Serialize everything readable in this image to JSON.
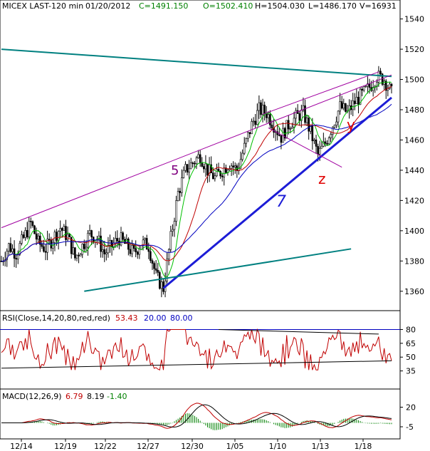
{
  "header": {
    "symbol": "MICEX LAST-120 min",
    "date": "01/20/2012",
    "close": "C=1491.150",
    "open": "O=1502.410",
    "high": "H=1504.030",
    "low": "L=1486.170",
    "volume": "V=16931"
  },
  "waves": [
    {
      "label": "5",
      "color": "#800080"
    },
    {
      "label": "7",
      "color": "#1c1cd6"
    },
    {
      "label": "z",
      "color": "#e00000"
    },
    {
      "label": "y",
      "color": "#e00000"
    }
  ],
  "rsi": {
    "title": "RSI(Close,14,20,80,red,red)",
    "value": "53.43",
    "lower": "20.00",
    "upper": "80.00",
    "lower_color": "#0000c0",
    "upper_color": "#0000c0",
    "value_color": "#c00000"
  },
  "macd": {
    "title": "MACD(12,26,9)",
    "macd": "6.79",
    "signal": "8.19",
    "hist": "-1.40",
    "macd_color": "#c00000",
    "signal_color": "#000000",
    "hist_color": "#008000"
  },
  "chart_data": {
    "type": "candlestick",
    "x_ticks": [
      "12/14",
      "12/19",
      "12/22",
      "12/27",
      "12/30",
      "1/05",
      "1/10",
      "1/13",
      "1/18"
    ],
    "price_axis": {
      "ticks": [
        1360,
        1380,
        1400,
        1420,
        1440,
        1460,
        1480,
        1500,
        1520,
        1540
      ],
      "ylim": [
        1350,
        1545
      ]
    },
    "rsi_axis": {
      "ticks": [
        35,
        50,
        65,
        80
      ],
      "ylim": [
        20,
        85
      ]
    },
    "macd_axis": {
      "ticks": [
        20,
        -5
      ],
      "ylim": [
        -15,
        25
      ]
    },
    "price_close_path": [
      [
        0,
        1380
      ],
      [
        4,
        1390
      ],
      [
        8,
        1385
      ],
      [
        12,
        1395
      ],
      [
        16,
        1405
      ],
      [
        20,
        1392
      ],
      [
        24,
        1388
      ],
      [
        28,
        1395
      ],
      [
        32,
        1402
      ],
      [
        36,
        1396
      ],
      [
        40,
        1382
      ],
      [
        44,
        1390
      ],
      [
        48,
        1398
      ],
      [
        52,
        1395
      ],
      [
        56,
        1385
      ],
      [
        60,
        1390
      ],
      [
        64,
        1395
      ],
      [
        68,
        1390
      ],
      [
        72,
        1385
      ],
      [
        76,
        1392
      ],
      [
        80,
        1390
      ],
      [
        84,
        1370
      ],
      [
        88,
        1362
      ],
      [
        92,
        1395
      ],
      [
        96,
        1425
      ],
      [
        100,
        1440
      ],
      [
        104,
        1445
      ],
      [
        108,
        1450
      ],
      [
        112,
        1440
      ],
      [
        116,
        1435
      ],
      [
        120,
        1440
      ],
      [
        124,
        1445
      ],
      [
        128,
        1440
      ],
      [
        132,
        1455
      ],
      [
        136,
        1470
      ],
      [
        140,
        1480
      ],
      [
        144,
        1478
      ],
      [
        148,
        1470
      ],
      [
        152,
        1462
      ],
      [
        156,
        1470
      ],
      [
        160,
        1475
      ],
      [
        164,
        1478
      ],
      [
        168,
        1465
      ],
      [
        172,
        1450
      ],
      [
        176,
        1458
      ],
      [
        180,
        1470
      ],
      [
        184,
        1482
      ],
      [
        188,
        1478
      ],
      [
        192,
        1485
      ],
      [
        196,
        1490
      ],
      [
        200,
        1495
      ],
      [
        204,
        1502
      ],
      [
        208,
        1500
      ],
      [
        212,
        1491
      ]
    ],
    "trendlines": [
      {
        "name": "upper-resistance",
        "x0": 0,
        "y0": 1520,
        "x1": 212,
        "y1": 1502
      },
      {
        "name": "wave-5-channel",
        "x0": 0,
        "y0": 1402,
        "x1": 212,
        "y1": 1503
      },
      {
        "name": "support-7",
        "x0": 88,
        "y0": 1362,
        "x1": 212,
        "y1": 1488
      },
      {
        "name": "lower-support",
        "x0": 45,
        "y0": 1360,
        "x1": 190,
        "y1": 1388
      }
    ]
  }
}
